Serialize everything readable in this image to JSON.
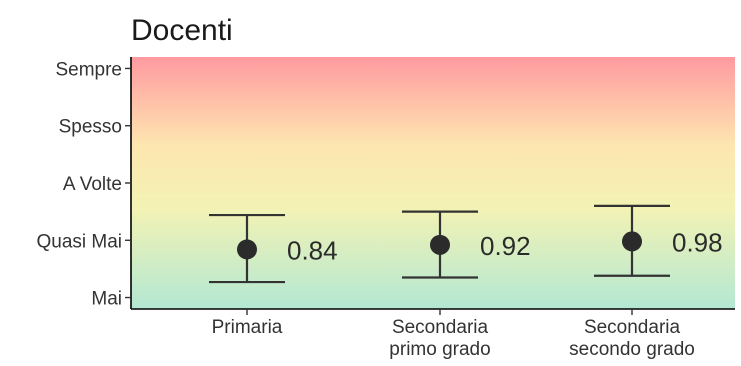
{
  "chart_data": {
    "type": "scatter",
    "title": "Docenti",
    "xlabel": "",
    "ylabel": "",
    "categories": [
      "Primaria",
      "Secondaria\nprimo grado",
      "Secondaria\nsecondo grado"
    ],
    "y_tick_labels": [
      "Mai",
      "Quasi Mai",
      "A Volte",
      "Spesso",
      "Sempre"
    ],
    "y_tick_values": [
      0,
      1,
      2,
      3,
      4
    ],
    "ylim": [
      -0.2,
      4.2
    ],
    "values": [
      0.84,
      0.92,
      0.98
    ],
    "error_lower": [
      0.27,
      0.35,
      0.38
    ],
    "error_upper": [
      1.44,
      1.5,
      1.6
    ],
    "value_labels": [
      "0.84",
      "0.92",
      "0.98"
    ],
    "grid": false,
    "legend": "none",
    "background_gradient": [
      "#b3e8d3",
      "#f3f2b4",
      "#fde6b0",
      "#ff9aa0"
    ],
    "point_color": "#2b2b2b",
    "errorbar_color": "#333333"
  }
}
